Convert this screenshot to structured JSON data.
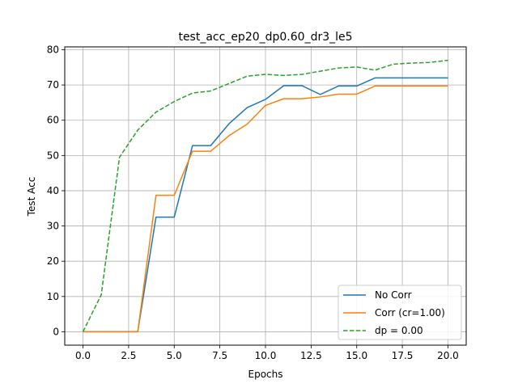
{
  "chart_data": {
    "type": "line",
    "title": "test_acc_ep20_dp0.60_dr3_le5",
    "xlabel": "Epochs",
    "ylabel": "Test Acc",
    "xlim": [
      -1.0,
      21.0
    ],
    "ylim": [
      -3.8,
      80.8
    ],
    "xticks": [
      0,
      2.5,
      5,
      7.5,
      10,
      12.5,
      15,
      17.5,
      20
    ],
    "xtick_labels": [
      "0.0",
      "2.5",
      "5.0",
      "7.5",
      "10.0",
      "12.5",
      "15.0",
      "17.5",
      "20.0"
    ],
    "yticks": [
      0,
      10,
      20,
      30,
      40,
      50,
      60,
      70,
      80
    ],
    "ytick_labels": [
      "0",
      "10",
      "20",
      "30",
      "40",
      "50",
      "60",
      "70",
      "80"
    ],
    "grid": true,
    "legend_position": "lower-right",
    "x": [
      0,
      1,
      2,
      3,
      4,
      5,
      6,
      7,
      8,
      9,
      10,
      11,
      12,
      13,
      14,
      15,
      16,
      17,
      18,
      19,
      20
    ],
    "series": [
      {
        "name": "No Corr",
        "color": "#1f77b4",
        "dash": "solid",
        "values": [
          0.0,
          0.0,
          0.0,
          0.0,
          32.5,
          32.5,
          52.8,
          52.8,
          59.0,
          63.6,
          65.9,
          69.8,
          69.8,
          67.3,
          69.7,
          69.7,
          72.0,
          72.0,
          72.0,
          72.0,
          72.0
        ]
      },
      {
        "name": "Corr (cr=1.00)",
        "color": "#ff7f0e",
        "dash": "solid",
        "values": [
          0.0,
          0.0,
          0.0,
          0.0,
          38.7,
          38.7,
          51.2,
          51.2,
          55.6,
          58.9,
          64.2,
          66.1,
          66.1,
          66.6,
          67.4,
          67.4,
          69.7,
          69.7,
          69.7,
          69.7,
          69.7
        ]
      },
      {
        "name": "dp = 0.00",
        "color": "#2ca02c",
        "dash": "dashed",
        "values": [
          0.0,
          10.5,
          49.5,
          57.2,
          62.3,
          65.3,
          67.7,
          68.3,
          70.4,
          72.5,
          73.0,
          72.7,
          73.0,
          73.9,
          74.8,
          75.1,
          74.2,
          75.9,
          76.2,
          76.4,
          77.0
        ]
      }
    ]
  }
}
